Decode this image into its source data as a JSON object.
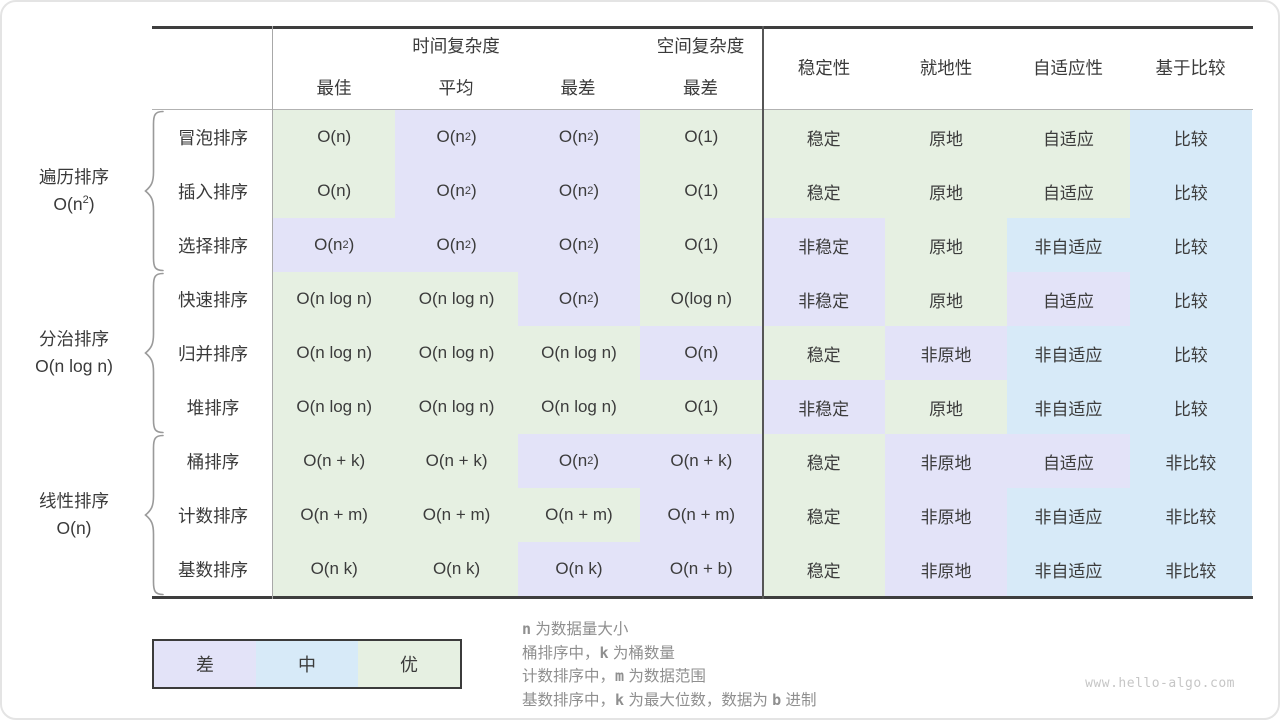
{
  "colors": {
    "good": "#e6f0e2",
    "mid": "#d7eaf8",
    "bad": "#e3e3f8"
  },
  "chart_data": {
    "type": "table",
    "title": "排序算法对比（hello-algo 排序总结表）",
    "header": {
      "time_complexity": "时间复杂度",
      "space_complexity": "空间复杂度",
      "sub": [
        "最佳",
        "平均",
        "最差",
        "最差"
      ],
      "right": [
        "稳定性",
        "就地性",
        "自适应性",
        "基于比较"
      ]
    },
    "groups": [
      {
        "line1": "遍历排序",
        "line2": "O(n^2)"
      },
      {
        "line1": "分治排序",
        "line2": "O(n log n)"
      },
      {
        "line1": "线性排序",
        "line2": "O(n)"
      }
    ],
    "rows": [
      {
        "label": "冒泡排序",
        "cells": [
          {
            "text": "O(n)",
            "grade": "good"
          },
          {
            "text": "O(n^2)",
            "grade": "bad"
          },
          {
            "text": "O(n^2)",
            "grade": "bad"
          },
          {
            "text": "O(1)",
            "grade": "good"
          },
          {
            "text": "稳定",
            "grade": "good"
          },
          {
            "text": "原地",
            "grade": "good"
          },
          {
            "text": "自适应",
            "grade": "good"
          },
          {
            "text": "比较",
            "grade": "mid"
          }
        ]
      },
      {
        "label": "插入排序",
        "cells": [
          {
            "text": "O(n)",
            "grade": "good"
          },
          {
            "text": "O(n^2)",
            "grade": "bad"
          },
          {
            "text": "O(n^2)",
            "grade": "bad"
          },
          {
            "text": "O(1)",
            "grade": "good"
          },
          {
            "text": "稳定",
            "grade": "good"
          },
          {
            "text": "原地",
            "grade": "good"
          },
          {
            "text": "自适应",
            "grade": "good"
          },
          {
            "text": "比较",
            "grade": "mid"
          }
        ]
      },
      {
        "label": "选择排序",
        "cells": [
          {
            "text": "O(n^2)",
            "grade": "bad"
          },
          {
            "text": "O(n^2)",
            "grade": "bad"
          },
          {
            "text": "O(n^2)",
            "grade": "bad"
          },
          {
            "text": "O(1)",
            "grade": "good"
          },
          {
            "text": "非稳定",
            "grade": "bad"
          },
          {
            "text": "原地",
            "grade": "good"
          },
          {
            "text": "非自适应",
            "grade": "mid"
          },
          {
            "text": "比较",
            "grade": "mid"
          }
        ]
      },
      {
        "label": "快速排序",
        "cells": [
          {
            "text": "O(n log n)",
            "grade": "good"
          },
          {
            "text": "O(n log n)",
            "grade": "good"
          },
          {
            "text": "O(n^2)",
            "grade": "bad"
          },
          {
            "text": "O(log n)",
            "grade": "good"
          },
          {
            "text": "非稳定",
            "grade": "bad"
          },
          {
            "text": "原地",
            "grade": "good"
          },
          {
            "text": "自适应",
            "grade": "bad"
          },
          {
            "text": "比较",
            "grade": "mid"
          }
        ]
      },
      {
        "label": "归并排序",
        "cells": [
          {
            "text": "O(n log n)",
            "grade": "good"
          },
          {
            "text": "O(n log n)",
            "grade": "good"
          },
          {
            "text": "O(n log n)",
            "grade": "good"
          },
          {
            "text": "O(n)",
            "grade": "bad"
          },
          {
            "text": "稳定",
            "grade": "good"
          },
          {
            "text": "非原地",
            "grade": "bad"
          },
          {
            "text": "非自适应",
            "grade": "mid"
          },
          {
            "text": "比较",
            "grade": "mid"
          }
        ]
      },
      {
        "label": "堆排序",
        "cells": [
          {
            "text": "O(n log n)",
            "grade": "good"
          },
          {
            "text": "O(n log n)",
            "grade": "good"
          },
          {
            "text": "O(n log n)",
            "grade": "good"
          },
          {
            "text": "O(1)",
            "grade": "good"
          },
          {
            "text": "非稳定",
            "grade": "bad"
          },
          {
            "text": "原地",
            "grade": "good"
          },
          {
            "text": "非自适应",
            "grade": "mid"
          },
          {
            "text": "比较",
            "grade": "mid"
          }
        ]
      },
      {
        "label": "桶排序",
        "cells": [
          {
            "text": "O(n + k)",
            "grade": "good"
          },
          {
            "text": "O(n + k)",
            "grade": "good"
          },
          {
            "text": "O(n^2)",
            "grade": "bad"
          },
          {
            "text": "O(n + k)",
            "grade": "bad"
          },
          {
            "text": "稳定",
            "grade": "good"
          },
          {
            "text": "非原地",
            "grade": "bad"
          },
          {
            "text": "自适应",
            "grade": "bad"
          },
          {
            "text": "非比较",
            "grade": "mid"
          }
        ]
      },
      {
        "label": "计数排序",
        "cells": [
          {
            "text": "O(n + m)",
            "grade": "good"
          },
          {
            "text": "O(n + m)",
            "grade": "good"
          },
          {
            "text": "O(n + m)",
            "grade": "good"
          },
          {
            "text": "O(n + m)",
            "grade": "bad"
          },
          {
            "text": "稳定",
            "grade": "good"
          },
          {
            "text": "非原地",
            "grade": "bad"
          },
          {
            "text": "非自适应",
            "grade": "mid"
          },
          {
            "text": "非比较",
            "grade": "mid"
          }
        ]
      },
      {
        "label": "基数排序",
        "cells": [
          {
            "text": "O(n k)",
            "grade": "good"
          },
          {
            "text": "O(n k)",
            "grade": "good"
          },
          {
            "text": "O(n k)",
            "grade": "bad"
          },
          {
            "text": "O(n + b)",
            "grade": "bad"
          },
          {
            "text": "稳定",
            "grade": "good"
          },
          {
            "text": "非原地",
            "grade": "bad"
          },
          {
            "text": "非自适应",
            "grade": "mid"
          },
          {
            "text": "非比较",
            "grade": "mid"
          }
        ]
      }
    ]
  },
  "legend": {
    "items": [
      {
        "label": "差",
        "grade": "bad"
      },
      {
        "label": "中",
        "grade": "mid"
      },
      {
        "label": "优",
        "grade": "good"
      }
    ]
  },
  "notes": {
    "lines": [
      {
        "segments": [
          {
            "text": "n",
            "var": true
          },
          {
            "text": " 为数据量大小",
            "var": false
          }
        ]
      },
      {
        "segments": [
          {
            "text": "桶排序中，",
            "var": false
          },
          {
            "text": "k",
            "var": true
          },
          {
            "text": " 为桶数量",
            "var": false
          }
        ]
      },
      {
        "segments": [
          {
            "text": "计数排序中，",
            "var": false
          },
          {
            "text": "m",
            "var": true
          },
          {
            "text": " 为数据范围",
            "var": false
          }
        ]
      },
      {
        "segments": [
          {
            "text": "基数排序中，",
            "var": false
          },
          {
            "text": "k",
            "var": true
          },
          {
            "text": " 为最大位数，数据为 ",
            "var": false
          },
          {
            "text": "b",
            "var": true
          },
          {
            "text": " 进制",
            "var": false
          }
        ]
      }
    ]
  },
  "watermark": "www.hello-algo.com"
}
